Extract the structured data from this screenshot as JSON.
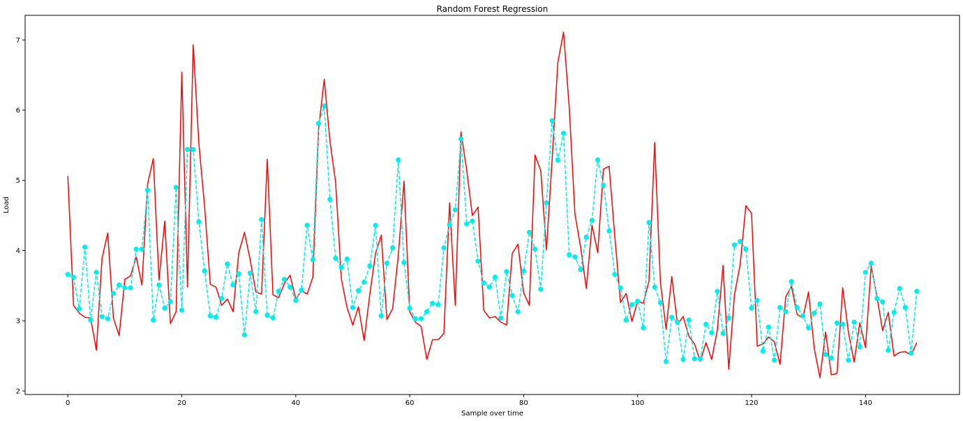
{
  "chart_data": {
    "type": "line",
    "title": "Random Forest Regression",
    "xlabel": "Sample over time",
    "ylabel": "Load",
    "xlim": [
      -7.5,
      156.5
    ],
    "ylim": [
      1.95,
      7.35
    ],
    "xticks": [
      0,
      20,
      40,
      60,
      80,
      100,
      120,
      140
    ],
    "yticks": [
      2,
      3,
      4,
      5,
      6,
      7
    ],
    "grid": false,
    "series": [
      {
        "name": "",
        "color": "#ff0000",
        "style": "solid",
        "marker": "none",
        "values": [
          5.06,
          3.22,
          3.11,
          3.05,
          3.04,
          2.58,
          3.89,
          4.25,
          3.04,
          2.79,
          3.59,
          3.64,
          3.91,
          3.51,
          4.95,
          5.31,
          3.58,
          4.42,
          2.96,
          3.13,
          6.54,
          3.48,
          6.93,
          5.52,
          4.63,
          3.52,
          3.48,
          3.22,
          3.31,
          3.13,
          3.97,
          4.26,
          3.87,
          3.41,
          3.38,
          5.3,
          3.37,
          3.33,
          3.53,
          3.65,
          3.31,
          3.43,
          3.38,
          3.62,
          5.72,
          6.44,
          5.56,
          4.97,
          3.6,
          3.19,
          2.94,
          3.2,
          2.72,
          3.38,
          3.96,
          4.22,
          3.02,
          3.17,
          3.93,
          4.99,
          3.13,
          2.98,
          2.92,
          2.45,
          2.73,
          2.73,
          2.82,
          4.68,
          3.22,
          5.69,
          5.15,
          4.5,
          4.62,
          3.15,
          3.04,
          3.06,
          2.98,
          2.94,
          3.96,
          4.09,
          3.4,
          3.22,
          5.36,
          5.14,
          4.01,
          5.3,
          6.68,
          7.11,
          6.04,
          4.52,
          4.05,
          3.46,
          4.36,
          3.97,
          5.16,
          5.2,
          4.2,
          3.26,
          3.39,
          2.99,
          3.28,
          3.25,
          3.57,
          5.54,
          3.55,
          2.88,
          3.63,
          2.95,
          3.06,
          2.78,
          2.67,
          2.42,
          2.69,
          2.45,
          2.87,
          3.79,
          2.31,
          3.37,
          3.8,
          4.64,
          4.53,
          2.64,
          2.67,
          2.77,
          2.7,
          2.38,
          3.34,
          3.49,
          3.09,
          3.04,
          3.41,
          2.61,
          2.19,
          2.84,
          2.23,
          2.25,
          3.47,
          2.84,
          2.41,
          2.97,
          2.62,
          3.78,
          3.35,
          2.86,
          3.12,
          2.5,
          2.55,
          2.56,
          2.51,
          2.69
        ]
      },
      {
        "name": "",
        "color": "#00eeee",
        "style": "dashed",
        "marker": "circle",
        "values": [
          3.66,
          3.62,
          3.17,
          4.05,
          3.01,
          3.69,
          3.06,
          3.03,
          3.39,
          3.51,
          3.47,
          3.47,
          4.02,
          4.02,
          4.86,
          3.01,
          3.51,
          3.18,
          3.27,
          4.9,
          3.15,
          5.44,
          5.44,
          4.41,
          3.71,
          3.07,
          3.05,
          3.32,
          3.81,
          3.51,
          3.67,
          2.8,
          3.68,
          3.13,
          4.44,
          3.08,
          3.04,
          3.42,
          3.59,
          3.48,
          3.29,
          3.44,
          4.36,
          3.87,
          5.81,
          6.06,
          4.73,
          3.89,
          3.76,
          3.88,
          3.19,
          3.43,
          3.55,
          3.78,
          4.36,
          3.07,
          3.82,
          4.04,
          5.29,
          3.83,
          3.18,
          3.03,
          3.03,
          3.13,
          3.25,
          3.23,
          4.04,
          4.37,
          4.58,
          5.59,
          4.38,
          4.42,
          3.85,
          3.54,
          3.48,
          3.62,
          3.04,
          3.7,
          3.36,
          3.13,
          3.71,
          4.26,
          4.02,
          3.45,
          4.68,
          5.85,
          5.29,
          5.67,
          3.94,
          3.91,
          3.73,
          4.19,
          4.43,
          5.29,
          4.93,
          4.28,
          3.66,
          3.47,
          3.01,
          3.23,
          3.28,
          2.9,
          4.4,
          3.48,
          3.26,
          2.42,
          3.05,
          2.98,
          2.45,
          3.01,
          2.46,
          2.46,
          2.95,
          2.83,
          3.42,
          2.82,
          3.04,
          4.08,
          4.13,
          4.02,
          3.18,
          3.29,
          2.57,
          2.91,
          2.44,
          3.19,
          3.13,
          3.56,
          3.19,
          3.07,
          2.9,
          3.11,
          3.24,
          2.52,
          2.47,
          2.97,
          2.95,
          2.44,
          2.98,
          2.63,
          3.69,
          3.82,
          3.32,
          3.27,
          2.58,
          3.12,
          3.46,
          3.19,
          2.54,
          3.42
        ]
      }
    ]
  }
}
